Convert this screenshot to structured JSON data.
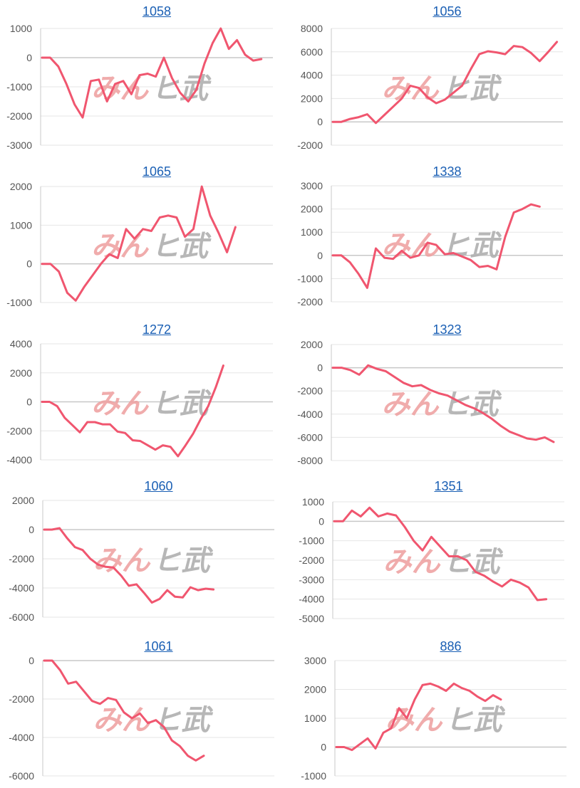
{
  "colors": {
    "line": "#f0566f",
    "grid": "#e6e6e6",
    "zero": "#c8c8c8",
    "wm_left": "#ee9e9e",
    "wm_right": "#b0b0b0"
  },
  "watermark": {
    "left": "みん",
    "right": "ヒ武"
  },
  "chart_data": [
    {
      "type": "line",
      "title": "1058",
      "yticks": [
        1000,
        0,
        -1000,
        -2000,
        -3000
      ],
      "ylim": [
        -3000,
        1000
      ],
      "values": [
        0,
        0,
        -300,
        -900,
        -1600,
        -2050,
        -800,
        -750,
        -1500,
        -900,
        -800,
        -1250,
        -600,
        -550,
        -650,
        0,
        -700,
        -1200,
        -1500,
        -1100,
        -200,
        500,
        1000,
        300,
        600,
        100,
        -100,
        -50
      ]
    },
    {
      "type": "line",
      "title": "1056",
      "yticks": [
        8000,
        6000,
        4000,
        2000,
        0,
        -2000
      ],
      "ylim": [
        -2000,
        8000
      ],
      "values": [
        0,
        0,
        250,
        400,
        650,
        -100,
        600,
        1300,
        2000,
        3100,
        2900,
        2100,
        1600,
        1900,
        2500,
        3100,
        4500,
        5800,
        6050,
        5950,
        5800,
        6500,
        6400,
        5900,
        5200,
        6000,
        6850
      ]
    },
    {
      "type": "line",
      "title": "1065",
      "yticks": [
        2000,
        1000,
        0,
        -1000
      ],
      "ylim": [
        -1000,
        2000
      ],
      "values": [
        0,
        0,
        -200,
        -750,
        -950,
        -600,
        -300,
        0,
        250,
        150,
        900,
        650,
        900,
        850,
        1200,
        1250,
        1200,
        700,
        900,
        2000,
        1250,
        800,
        300,
        950
      ]
    },
    {
      "type": "line",
      "title": "1338",
      "yticks": [
        3000,
        2000,
        1000,
        0,
        -1000,
        -2000
      ],
      "ylim": [
        -2000,
        3000
      ],
      "values": [
        0,
        0,
        -300,
        -800,
        -1400,
        300,
        -100,
        -150,
        200,
        -100,
        0,
        550,
        450,
        50,
        100,
        -50,
        -200,
        -500,
        -450,
        -600,
        800,
        1850,
        2000,
        2200,
        2100
      ]
    },
    {
      "type": "line",
      "title": "1272",
      "yticks": [
        4000,
        2000,
        0,
        -2000,
        -4000
      ],
      "ylim": [
        -4000,
        4000
      ],
      "values": [
        0,
        0,
        -300,
        -1100,
        -1600,
        -2100,
        -1400,
        -1400,
        -1550,
        -1550,
        -2050,
        -2150,
        -2650,
        -2700,
        -3000,
        -3300,
        -3000,
        -3100,
        -3750,
        -3000,
        -2200,
        -1200,
        -300,
        1000,
        2500
      ]
    },
    {
      "type": "line",
      "title": "1323",
      "yticks": [
        2000,
        0,
        -2000,
        -4000,
        -6000,
        -8000
      ],
      "ylim": [
        -8000,
        2000
      ],
      "values": [
        0,
        0,
        -200,
        -600,
        200,
        -100,
        -300,
        -800,
        -1300,
        -1600,
        -1500,
        -1900,
        -2200,
        -2400,
        -2800,
        -3200,
        -3500,
        -3900,
        -4400,
        -5000,
        -5500,
        -5800,
        -6100,
        -6200,
        -6000,
        -6400
      ]
    },
    {
      "type": "line",
      "title": "1060",
      "yticks": [
        2000,
        0,
        -2000,
        -4000,
        -6000
      ],
      "ylim": [
        -6000,
        2000
      ],
      "values": [
        0,
        0,
        100,
        -600,
        -1200,
        -1400,
        -2000,
        -2400,
        -2550,
        -2600,
        -3150,
        -3850,
        -3750,
        -4350,
        -5000,
        -4750,
        -4150,
        -4600,
        -4650,
        -3950,
        -4150,
        -4050,
        -4100
      ]
    },
    {
      "type": "line",
      "title": "1351",
      "yticks": [
        1000,
        0,
        -1000,
        -2000,
        -3000,
        -4000,
        -5000
      ],
      "ylim": [
        -5000,
        1000
      ],
      "values": [
        0,
        0,
        550,
        250,
        700,
        250,
        400,
        300,
        -300,
        -1000,
        -1500,
        -800,
        -1300,
        -1800,
        -1800,
        -2000,
        -2600,
        -2800,
        -3100,
        -3350,
        -3000,
        -3150,
        -3400,
        -4050,
        -4000
      ]
    },
    {
      "type": "line",
      "title": "1061",
      "yticks": [
        0,
        -2000,
        -4000,
        -6000
      ],
      "ylim": [
        -6000,
        0
      ],
      "values": [
        0,
        0,
        -500,
        -1200,
        -1100,
        -1600,
        -2100,
        -2250,
        -1950,
        -2050,
        -2700,
        -3000,
        -2750,
        -3250,
        -3100,
        -3450,
        -4150,
        -4450,
        -4950,
        -5200,
        -4950
      ]
    },
    {
      "type": "line",
      "title": "886",
      "yticks": [
        3000,
        2000,
        1000,
        0,
        -1000
      ],
      "ylim": [
        -1000,
        3000
      ],
      "values": [
        0,
        0,
        -100,
        100,
        300,
        -50,
        500,
        650,
        1350,
        1000,
        1650,
        2150,
        2200,
        2100,
        1950,
        2200,
        2050,
        1950,
        1750,
        1600,
        1800,
        1650
      ]
    }
  ]
}
